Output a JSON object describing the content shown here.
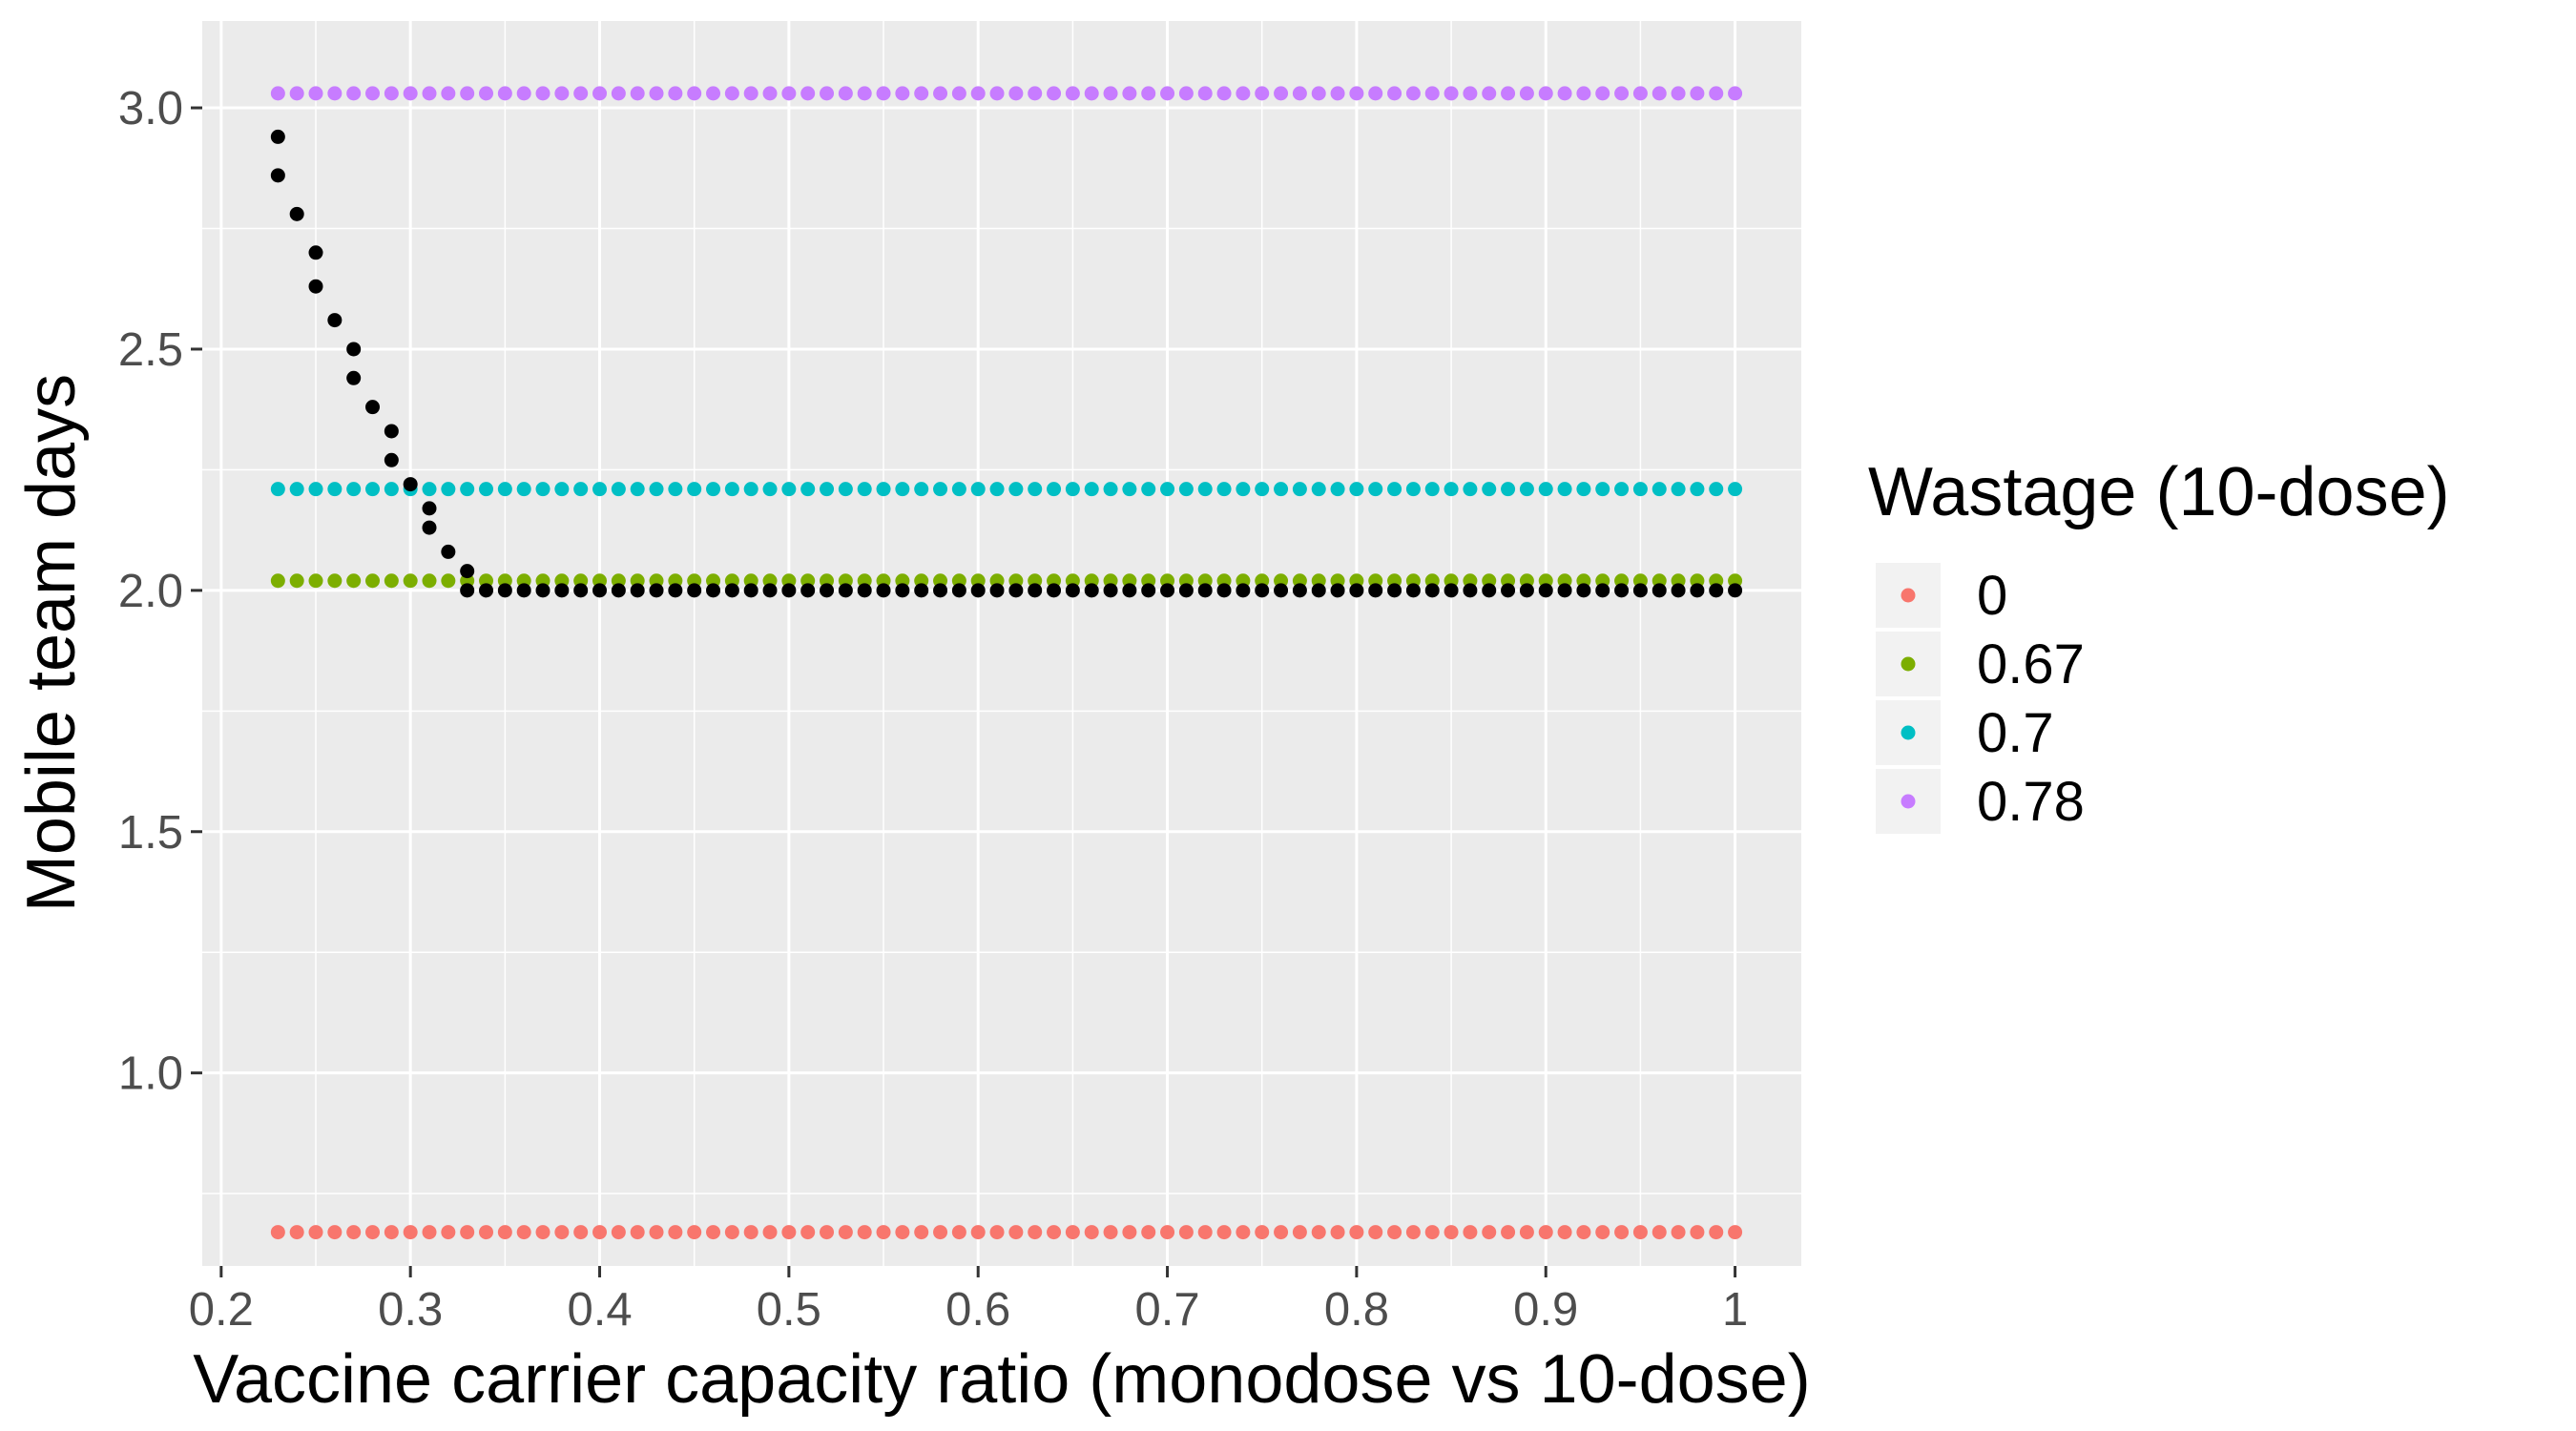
{
  "chart_data": {
    "type": "scatter",
    "xlabel": "Vaccine carrier capacity ratio (monodose vs 10-dose)",
    "ylabel": "Mobile team days",
    "xlim": [
      0.19,
      1.035
    ],
    "ylim": [
      0.6,
      3.18
    ],
    "x_ticks": [
      0.2,
      0.3,
      0.4,
      0.5,
      0.6,
      0.7,
      0.8,
      0.9,
      1.0
    ],
    "x_tick_labels": [
      "0.2",
      "0.3",
      "0.4",
      "0.5",
      "0.6",
      "0.7",
      "0.8",
      "0.9",
      "1"
    ],
    "y_ticks": [
      1.0,
      1.5,
      2.0,
      2.5,
      3.0
    ],
    "y_tick_labels": [
      "1.0",
      "1.5",
      "2.0",
      "2.5",
      "3.0"
    ],
    "grid": true,
    "legend_position": "right",
    "legend": {
      "title": "Wastage (10-dose)",
      "entries": [
        {
          "label": "0",
          "color": "#F8766D"
        },
        {
          "label": "0.67",
          "color": "#7CAE00"
        },
        {
          "label": "0.7",
          "color": "#00BFC4"
        },
        {
          "label": "0.78",
          "color": "#C77CFF"
        }
      ]
    },
    "series": [
      {
        "name": "0",
        "color": "#F8766D",
        "x_start": 0.23,
        "x_end": 1.0,
        "x_step": 0.01,
        "y": 0.67
      },
      {
        "name": "0.67",
        "color": "#7CAE00",
        "x_start": 0.23,
        "x_end": 1.0,
        "x_step": 0.01,
        "y": 2.02
      },
      {
        "name": "0.7",
        "color": "#00BFC4",
        "x_start": 0.23,
        "x_end": 1.0,
        "x_step": 0.01,
        "y": 2.21
      },
      {
        "name": "0.78",
        "color": "#C77CFF",
        "x_start": 0.23,
        "x_end": 1.0,
        "x_step": 0.01,
        "y": 3.03
      },
      {
        "color": "#000000",
        "points": [
          [
            0.23,
            2.94
          ],
          [
            0.23,
            2.86
          ],
          [
            0.24,
            2.78
          ],
          [
            0.25,
            2.7
          ],
          [
            0.25,
            2.63
          ],
          [
            0.26,
            2.56
          ],
          [
            0.27,
            2.5
          ],
          [
            0.27,
            2.44
          ],
          [
            0.28,
            2.38
          ],
          [
            0.29,
            2.33
          ],
          [
            0.29,
            2.27
          ],
          [
            0.3,
            2.22
          ],
          [
            0.31,
            2.17
          ],
          [
            0.31,
            2.13
          ],
          [
            0.32,
            2.08
          ],
          [
            0.33,
            2.04
          ]
        ],
        "tail": {
          "x_start": 0.33,
          "x_end": 1.0,
          "x_step": 0.01,
          "y": 2.0
        }
      }
    ]
  }
}
